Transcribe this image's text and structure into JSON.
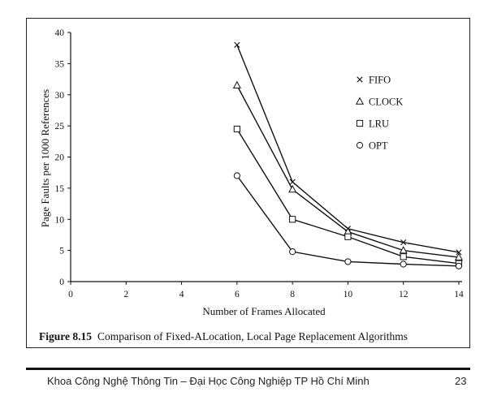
{
  "chart_data": {
    "type": "line",
    "title": "",
    "xlabel": "Number of Frames Allocated",
    "ylabel": "Page Faults per 1000 References",
    "x_ticks": [
      "0",
      "2",
      "4",
      "6",
      "8",
      "10",
      "12",
      "14"
    ],
    "y_ticks": [
      "0",
      "5",
      "10",
      "15",
      "20",
      "25",
      "30",
      "35",
      "40"
    ],
    "xlim": [
      0,
      14
    ],
    "ylim": [
      0,
      40
    ],
    "x": [
      6,
      8,
      10,
      12,
      14
    ],
    "series": [
      {
        "name": "FIFO",
        "marker": "x",
        "values": [
          38,
          16,
          8.5,
          6.3,
          4.7
        ]
      },
      {
        "name": "CLOCK",
        "marker": "triangle",
        "values": [
          31.5,
          14.8,
          8,
          5,
          3.9
        ]
      },
      {
        "name": "LRU",
        "marker": "square",
        "values": [
          24.5,
          10,
          7.2,
          4,
          2.9
        ]
      },
      {
        "name": "OPT",
        "marker": "circle",
        "values": [
          17,
          4.8,
          3.2,
          2.8,
          2.5
        ]
      }
    ],
    "legend_position": "top-right"
  },
  "caption": {
    "label": "Figure 8.15",
    "text": "Comparison of Fixed-ALocation, Local Page Replacement Algorithms"
  },
  "footer": {
    "text": "Khoa Công Nghệ Thông Tin – Đại Học Công Nghiệp TP Hồ Chí Minh",
    "page_number": "23"
  }
}
